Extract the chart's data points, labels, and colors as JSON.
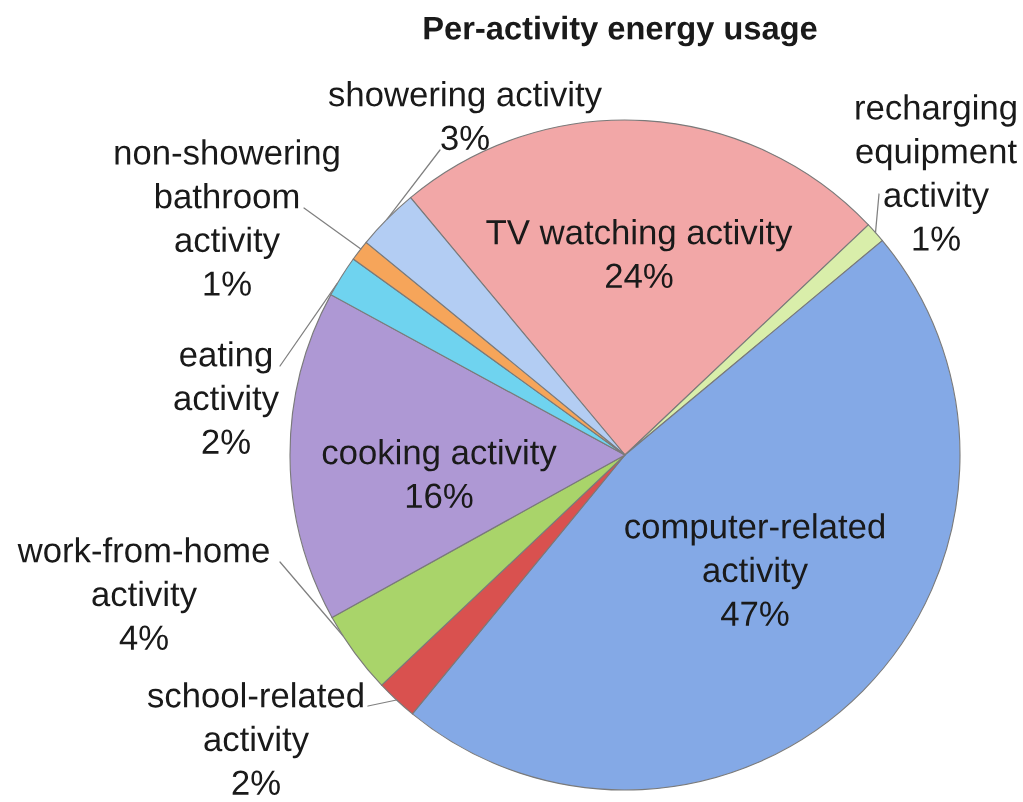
{
  "chart_data": {
    "type": "pie",
    "title": "Per-activity energy usage",
    "categories": [
      "TV watching activity",
      "recharging\nequipment\nactivity",
      "computer-related\nactivity",
      "school-related\nactivity",
      "work-from-home\nactivity",
      "cooking activity",
      "eating\nactivity",
      "non-showering\nbathroom\nactivity",
      "showering activity"
    ],
    "values": [
      24,
      1,
      47,
      2,
      4,
      16,
      2,
      1,
      3
    ],
    "value_labels": [
      "24%",
      "1%",
      "47%",
      "2%",
      "4%",
      "16%",
      "2%",
      "1%",
      "3%"
    ],
    "colors": [
      "#f2a7a7",
      "#d9eeaa",
      "#84a9e6",
      "#d9514f",
      "#a9d46a",
      "#ae98d4",
      "#6fd3ef",
      "#f6a55a",
      "#b3cdf3"
    ]
  }
}
